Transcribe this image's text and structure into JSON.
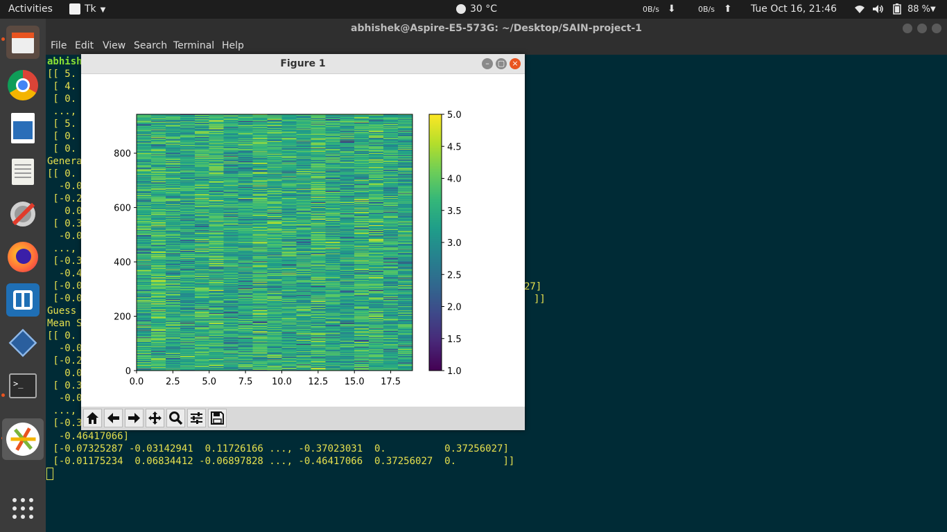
{
  "topbar": {
    "activities": "Activities",
    "app_name": "Tk",
    "weather": "30 °C",
    "net_down": "0B/s",
    "net_up": "0B/s",
    "clock": "Tue Oct 16, 21:46",
    "battery": "88 %"
  },
  "dock": {
    "items": [
      "files",
      "chrome",
      "libreoffice-writer",
      "text-editor",
      "system-settings",
      "firefox",
      "app-grid-tool",
      "virtualbox",
      "terminal",
      "tk-app"
    ],
    "show_apps_icon": "show-applications-icon"
  },
  "terminal": {
    "title": "abhishek@Aspire-E5-573G: ~/Desktop/SAIN-project-1",
    "menu": [
      "File",
      "Edit",
      "View",
      "Search",
      "Terminal",
      "Help"
    ],
    "prompt_visible": "abhish",
    "left_lines": [
      "[[ 5.",
      " [ 4.",
      " [ 0.",
      " ...,",
      " [ 5.",
      " [ 0.",
      " [ 0.",
      "Genera",
      "[[ 0.",
      "  -0.0",
      " [-0.2",
      "   0.0",
      " [ 0.3",
      "  -0.0",
      " ...,",
      " [-0.3",
      "  -0.4",
      " [-0.0",
      " [-0.0",
      "Guess",
      "Mean S",
      "[[ 0.",
      "  -0.0",
      " [-0.2",
      "   0.0",
      " [ 0.3",
      "  -0.0",
      " ...,",
      " [-0.3"
    ],
    "right_fragment_1": "27]",
    "right_fragment_2": "]]",
    "bottom_lines": [
      "  -0.46417066]",
      " [-0.07325287 -0.03142941  0.11726166 ..., -0.37023031  0.          0.37256027]",
      " [-0.01175234  0.06834412 -0.06897828 ..., -0.46417066  0.37256027  0.        ]]"
    ]
  },
  "figure": {
    "title": "Figure 1",
    "toolbar_icons": [
      "home-icon",
      "back-arrow-icon",
      "forward-arrow-icon",
      "pan-move-icon",
      "zoom-magnifier-icon",
      "configure-subplots-icon",
      "save-floppy-icon"
    ]
  },
  "chart_data": {
    "type": "heatmap",
    "colormap": "viridis",
    "columns": 19,
    "rows": 943,
    "xlim": [
      0,
      19
    ],
    "ylim": [
      0,
      943
    ],
    "xticks": [
      "0.0",
      "2.5",
      "5.0",
      "7.5",
      "10.0",
      "12.5",
      "15.0",
      "17.5"
    ],
    "xtick_values": [
      0,
      2.5,
      5,
      7.5,
      10,
      12.5,
      15,
      17.5
    ],
    "yticks": [
      "0",
      "200",
      "400",
      "600",
      "800"
    ],
    "ytick_values": [
      0,
      200,
      400,
      600,
      800
    ],
    "colorbar_ticks": [
      "1.0",
      "1.5",
      "2.0",
      "2.5",
      "3.0",
      "3.5",
      "4.0",
      "4.5",
      "5.0"
    ],
    "colorbar_values": [
      1.0,
      1.5,
      2.0,
      2.5,
      3.0,
      3.5,
      4.0,
      4.5,
      5.0
    ],
    "value_range": [
      1.0,
      5.0
    ]
  }
}
